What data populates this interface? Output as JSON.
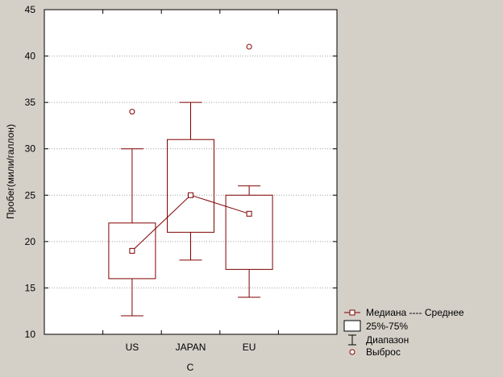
{
  "chart_data": {
    "type": "boxplot",
    "title": "",
    "xlabel": "C",
    "ylabel": "Пробег(мили/галлон)",
    "ylim": [
      10,
      45
    ],
    "yticks": [
      10,
      15,
      20,
      25,
      30,
      35,
      40,
      45
    ],
    "grid": "horizontal-dotted",
    "legend_position": "bottom-right",
    "categories": [
      "US",
      "JAPAN",
      "EU"
    ],
    "series": [
      {
        "category": "US",
        "min": 12,
        "q1": 16,
        "median": 19,
        "q3": 22,
        "max": 30,
        "outliers": [
          34
        ]
      },
      {
        "category": "JAPAN",
        "min": 18,
        "q1": 21,
        "median": 25,
        "q3": 31,
        "max": 35,
        "outliers": []
      },
      {
        "category": "EU",
        "min": 14,
        "q1": 17,
        "median": 23,
        "q3": 25,
        "max": 26,
        "outliers": [
          41
        ]
      }
    ],
    "legend": [
      {
        "symbol": "median-line",
        "label": "Медиана ---- Среднее"
      },
      {
        "symbol": "box",
        "label": "25%-75%"
      },
      {
        "symbol": "whisker",
        "label": "Диапазон"
      },
      {
        "symbol": "outlier",
        "label": "Выброс"
      }
    ],
    "colors": {
      "mark": "#800000",
      "plot_bg": "#ffffff",
      "background": "#d4d0c8",
      "grid": "#a0a0a0"
    }
  }
}
